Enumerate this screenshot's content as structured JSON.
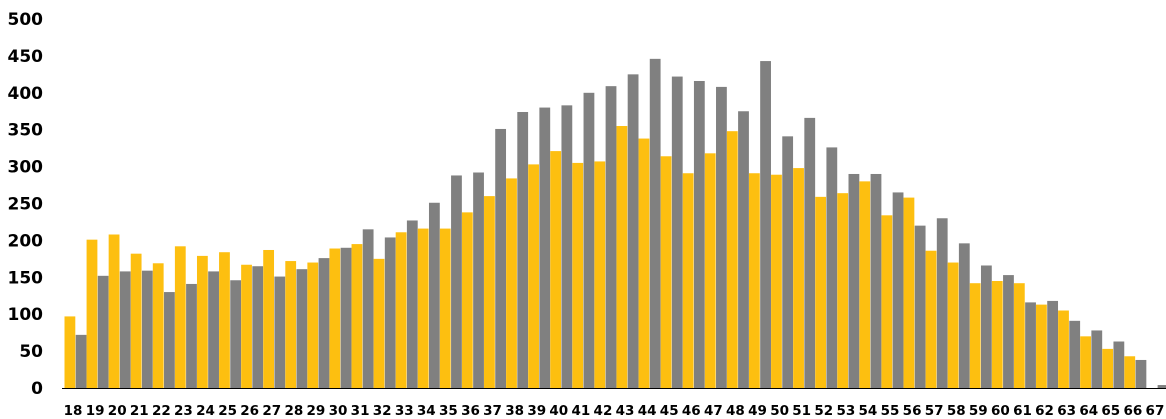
{
  "chart_data": {
    "type": "bar",
    "categories": [
      "18",
      "19",
      "20",
      "21",
      "22",
      "23",
      "24",
      "25",
      "26",
      "27",
      "28",
      "29",
      "30",
      "31",
      "32",
      "33",
      "34",
      "35",
      "36",
      "37",
      "38",
      "39",
      "40",
      "41",
      "42",
      "43",
      "44",
      "45",
      "46",
      "47",
      "48",
      "49",
      "50",
      "51",
      "52",
      "53",
      "54",
      "55",
      "56",
      "57",
      "58",
      "59",
      "60",
      "61",
      "62",
      "63",
      "64",
      "65",
      "66",
      "67"
    ],
    "series": [
      {
        "values": [
          97,
          201,
          208,
          182,
          169,
          192,
          179,
          184,
          167,
          187,
          172,
          170,
          189,
          195,
          175,
          211,
          216,
          216,
          238,
          260,
          284,
          303,
          321,
          305,
          307,
          355,
          338,
          314,
          291,
          318,
          348,
          291,
          289,
          298,
          259,
          264,
          280,
          234,
          258,
          186,
          170,
          142,
          145,
          142,
          113,
          105,
          70,
          53,
          43,
          0
        ],
        "color": "#fdbf10"
      },
      {
        "values": [
          72,
          152,
          158,
          159,
          130,
          141,
          158,
          146,
          165,
          151,
          161,
          176,
          190,
          215,
          204,
          227,
          251,
          288,
          292,
          351,
          374,
          380,
          383,
          400,
          409,
          425,
          446,
          422,
          416,
          408,
          375,
          443,
          341,
          366,
          326,
          290,
          290,
          265,
          220,
          230,
          196,
          166,
          153,
          116,
          118,
          91,
          78,
          63,
          38,
          4
        ],
        "color": "#808080"
      }
    ],
    "ylim": [
      0,
      500
    ],
    "yticks": [
      "0",
      "50",
      "100",
      "150",
      "200",
      "250",
      "300",
      "350",
      "400",
      "450",
      "500"
    ],
    "grid": false,
    "legend": "none",
    "title": "",
    "xlabel": "",
    "ylabel": ""
  }
}
